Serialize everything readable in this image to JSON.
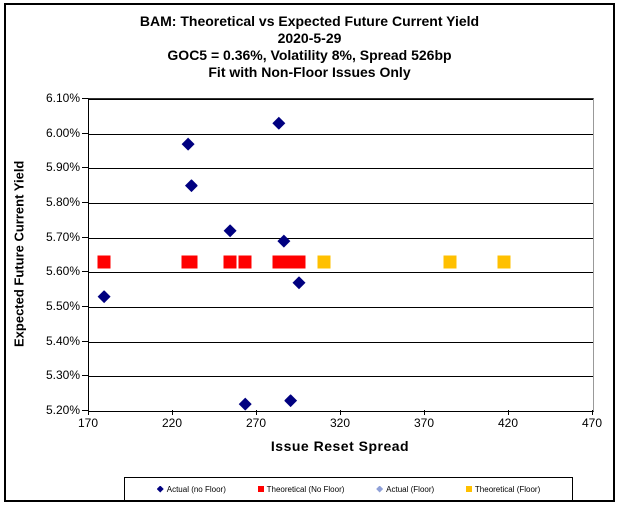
{
  "chart": {
    "title_lines": [
      "BAM: Theoretical vs Expected Future Current Yield",
      "2020-5-29",
      "GOC5 = 0.36%, Volatility 8%, Spread 526bp",
      "Fit with Non-Floor Issues Only"
    ],
    "x_axis": {
      "title": "Issue Reset Spread",
      "ticks": [
        {
          "value": 170,
          "label": "170"
        },
        {
          "value": 220,
          "label": "220"
        },
        {
          "value": 270,
          "label": "270"
        },
        {
          "value": 320,
          "label": "320"
        },
        {
          "value": 370,
          "label": "370"
        },
        {
          "value": 420,
          "label": "420"
        },
        {
          "value": 470,
          "label": "470"
        }
      ]
    },
    "y_axis": {
      "title": "Expected Future Current Yield",
      "ticks": [
        {
          "value": 6.1,
          "label": "6.10%"
        },
        {
          "value": 6.0,
          "label": "6.00%"
        },
        {
          "value": 5.9,
          "label": "5.90%"
        },
        {
          "value": 5.8,
          "label": "5.80%"
        },
        {
          "value": 5.7,
          "label": "5.70%"
        },
        {
          "value": 5.6,
          "label": "5.60%"
        },
        {
          "value": 5.5,
          "label": "5.50%"
        },
        {
          "value": 5.4,
          "label": "5.40%"
        },
        {
          "value": 5.3,
          "label": "5.30%"
        },
        {
          "value": 5.2,
          "label": "5.20%"
        }
      ]
    },
    "colors": {
      "actual_no_floor": "#000080",
      "theoretical_no_floor": "#FF0000",
      "actual_floor": "#8FA0D8",
      "theoretical_floor": "#FFC000"
    }
  },
  "chart_data": {
    "type": "scatter",
    "title": "BAM: Theoretical vs Expected Future Current Yield 2020-5-29 GOC5 = 0.36%, Volatility 8%, Spread 526bp Fit with Non-Floor Issues Only",
    "xlabel": "Issue Reset Spread",
    "ylabel": "Expected Future Current Yield",
    "xlim": [
      170,
      470
    ],
    "ylim": [
      5.2,
      6.1
    ],
    "x_tick_step": 50,
    "y_tick_step": 0.1,
    "grid": "horizontal",
    "legend_position": "bottom",
    "series": [
      {
        "name": "Actual (no Floor)",
        "marker": "diamond",
        "color": "#000080",
        "points": [
          [
            179,
            5.53
          ],
          [
            229,
            5.97
          ],
          [
            231,
            5.85
          ],
          [
            254,
            5.72
          ],
          [
            263,
            5.22
          ],
          [
            283,
            6.03
          ],
          [
            286,
            5.69
          ],
          [
            290,
            5.23
          ],
          [
            295,
            5.57
          ]
        ]
      },
      {
        "name": "Theoretical (No Floor)",
        "marker": "square",
        "color": "#FF0000",
        "points": [
          [
            179,
            5.63
          ],
          [
            229,
            5.63
          ],
          [
            231,
            5.63
          ],
          [
            254,
            5.63
          ],
          [
            263,
            5.63
          ],
          [
            283,
            5.63
          ],
          [
            286,
            5.63
          ],
          [
            290,
            5.63
          ],
          [
            295,
            5.63
          ]
        ]
      },
      {
        "name": "Actual (Floor)",
        "marker": "diamond",
        "color": "#8FA0D8",
        "points": []
      },
      {
        "name": "Theoretical (Floor)",
        "marker": "square",
        "color": "#FFC000",
        "points": [
          [
            310,
            5.63
          ],
          [
            385,
            5.63
          ],
          [
            417,
            5.63
          ]
        ]
      }
    ]
  }
}
